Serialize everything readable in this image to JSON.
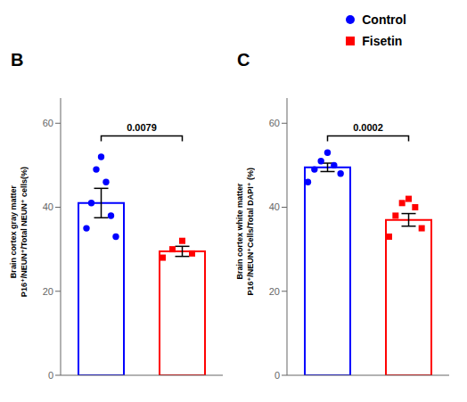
{
  "chart_data": [
    {
      "type": "bar",
      "title": "B",
      "y_label": "Brain cortex gray matter\nP16⁺/NEUN⁺/Total NEUN⁺ cells(%)",
      "ylim": [
        0,
        66
      ],
      "yticks": [
        0,
        20,
        40,
        60
      ],
      "tick_labels": "y",
      "series": [
        {
          "name": "Control",
          "color": "#0000ff",
          "marker": "circle",
          "values": [
            41.0
          ],
          "error": [
            3.5
          ],
          "points": [
            52,
            49,
            46,
            41,
            38,
            35,
            33
          ]
        },
        {
          "name": "Fisetin",
          "color": "#ff0000",
          "marker": "square",
          "values": [
            29.5
          ],
          "error": [
            1.2
          ],
          "points": [
            32,
            30,
            29,
            28
          ]
        }
      ],
      "annotations": [
        {
          "text": "0.0079",
          "y": 57
        }
      ]
    },
    {
      "type": "bar",
      "title": "C",
      "y_label": "Brain cortex white matter\nP16⁺/NEUN⁺Cells/Total DAPI⁺ (%)",
      "ylim": [
        0,
        66
      ],
      "yticks": [
        0,
        20,
        40,
        60
      ],
      "tick_labels": "y",
      "legend": "upper right",
      "series": [
        {
          "name": "Control",
          "color": "#0000ff",
          "marker": "circle",
          "values": [
            49.5
          ],
          "error": [
            1.0
          ],
          "points": [
            53,
            51,
            50,
            49,
            48,
            46
          ]
        },
        {
          "name": "Fisetin",
          "color": "#ff0000",
          "marker": "square",
          "values": [
            37.0
          ],
          "error": [
            1.5
          ],
          "points": [
            42,
            41,
            40,
            38,
            35,
            33
          ]
        }
      ],
      "annotations": [
        {
          "text": "0.0002",
          "y": 57
        }
      ]
    }
  ]
}
